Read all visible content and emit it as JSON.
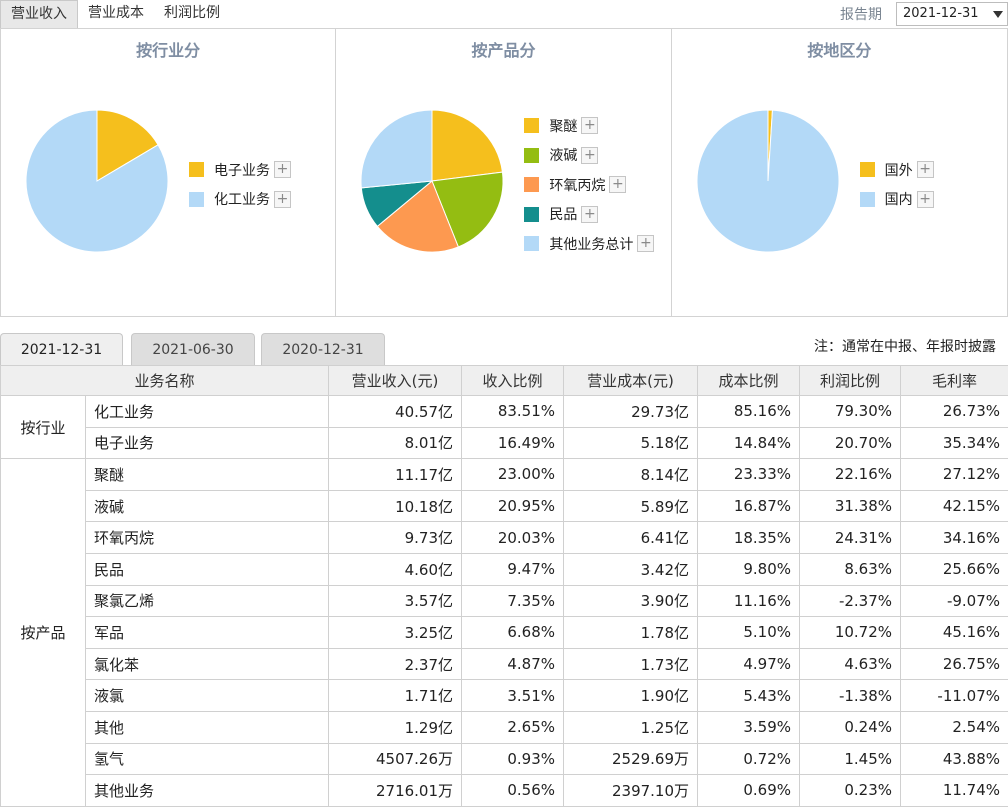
{
  "top_tabs": [
    {
      "label": "营业收入",
      "active": true
    },
    {
      "label": "营业成本",
      "active": false
    },
    {
      "label": "利润比例",
      "active": false
    }
  ],
  "report": {
    "label": "报告期",
    "value": "2021-12-31"
  },
  "charts": [
    {
      "title": "按行业分",
      "legend": [
        {
          "label": "电子业务",
          "color": "#f5bf1d",
          "value": 16.49
        },
        {
          "label": "化工业务",
          "color": "#b3d9f7",
          "value": 83.51
        }
      ]
    },
    {
      "title": "按产品分",
      "legend": [
        {
          "label": "聚醚",
          "color": "#f5bf1d",
          "value": 23.0
        },
        {
          "label": "液碱",
          "color": "#94bd12",
          "value": 20.95
        },
        {
          "label": "环氧丙烷",
          "color": "#fd9950",
          "value": 20.03
        },
        {
          "label": "民品",
          "color": "#148e8d",
          "value": 9.47
        },
        {
          "label": "其他业务总计",
          "color": "#b3d9f7",
          "value": 26.55
        }
      ]
    },
    {
      "title": "按地区分",
      "legend": [
        {
          "label": "国外",
          "color": "#f5bf1d",
          "value": 1.0
        },
        {
          "label": "国内",
          "color": "#b3d9f7",
          "value": 99.0
        }
      ]
    }
  ],
  "period_tabs": [
    {
      "label": "2021-12-31",
      "active": true
    },
    {
      "label": "2021-06-30",
      "active": false
    },
    {
      "label": "2020-12-31",
      "active": false
    }
  ],
  "note": "注：通常在中报、年报时披露",
  "table": {
    "headers": [
      "业务名称",
      "营业收入(元)",
      "收入比例",
      "营业成本(元)",
      "成本比例",
      "利润比例",
      "毛利率"
    ],
    "groups": [
      {
        "name": "按行业",
        "rows": [
          [
            "化工业务",
            "40.57亿",
            "83.51%",
            "29.73亿",
            "85.16%",
            "79.30%",
            "26.73%"
          ],
          [
            "电子业务",
            "8.01亿",
            "16.49%",
            "5.18亿",
            "14.84%",
            "20.70%",
            "35.34%"
          ]
        ]
      },
      {
        "name": "按产品",
        "rows": [
          [
            "聚醚",
            "11.17亿",
            "23.00%",
            "8.14亿",
            "23.33%",
            "22.16%",
            "27.12%"
          ],
          [
            "液碱",
            "10.18亿",
            "20.95%",
            "5.89亿",
            "16.87%",
            "31.38%",
            "42.15%"
          ],
          [
            "环氧丙烷",
            "9.73亿",
            "20.03%",
            "6.41亿",
            "18.35%",
            "24.31%",
            "34.16%"
          ],
          [
            "民品",
            "4.60亿",
            "9.47%",
            "3.42亿",
            "9.80%",
            "8.63%",
            "25.66%"
          ],
          [
            "聚氯乙烯",
            "3.57亿",
            "7.35%",
            "3.90亿",
            "11.16%",
            "-2.37%",
            "-9.07%"
          ],
          [
            "军品",
            "3.25亿",
            "6.68%",
            "1.78亿",
            "5.10%",
            "10.72%",
            "45.16%"
          ],
          [
            "氯化苯",
            "2.37亿",
            "4.87%",
            "1.73亿",
            "4.97%",
            "4.63%",
            "26.75%"
          ],
          [
            "液氯",
            "1.71亿",
            "3.51%",
            "1.90亿",
            "5.43%",
            "-1.38%",
            "-11.07%"
          ],
          [
            "其他",
            "1.29亿",
            "2.65%",
            "1.25亿",
            "3.59%",
            "0.24%",
            "2.54%"
          ],
          [
            "氢气",
            "4507.26万",
            "0.93%",
            "2529.69万",
            "0.72%",
            "1.45%",
            "43.88%"
          ],
          [
            "其他业务",
            "2716.01万",
            "0.56%",
            "2397.10万",
            "0.69%",
            "0.23%",
            "11.74%"
          ]
        ]
      }
    ]
  }
}
